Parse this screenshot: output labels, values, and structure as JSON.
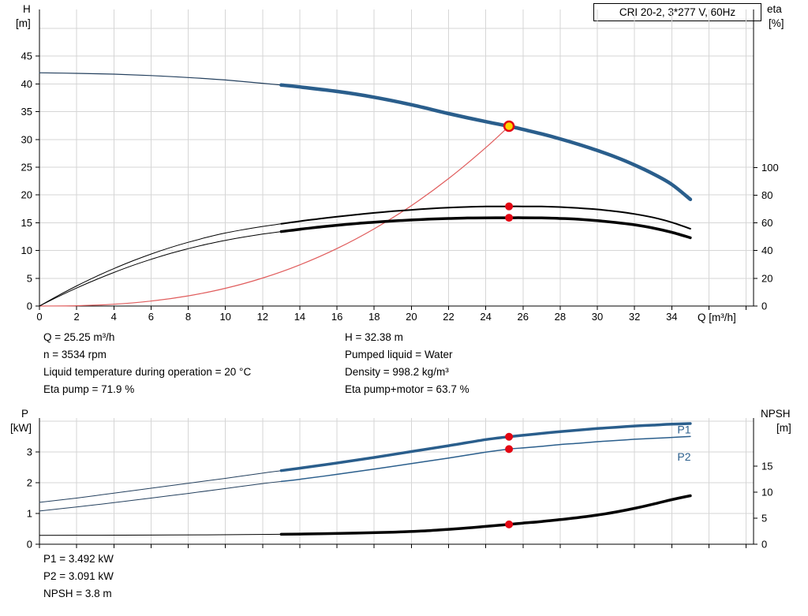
{
  "title_box": "CRI 20-2, 3*277 V, 60Hz",
  "axis_labels": {
    "h": "H",
    "h_unit": "[m]",
    "eta": "eta",
    "eta_unit": "[%]",
    "q": "Q [m³/h]",
    "p": "P",
    "p_unit": "[kW]",
    "npsh": "NPSH",
    "npsh_unit": "[m]"
  },
  "info_top_left": [
    "Q = 25.25 m³/h",
    "n = 3534 rpm",
    "Liquid temperature during operation = 20 °C",
    "Eta pump = 71.9 %"
  ],
  "info_top_right": [
    "H = 32.38 m",
    "Pumped liquid = Water",
    "Density = 998.2 kg/m³",
    "Eta pump+motor = 63.7 %"
  ],
  "info_bottom": [
    "P1 = 3.492 kW",
    "P2 = 3.091 kW",
    "NPSH = 3.8 m"
  ],
  "colors": {
    "duty_curve_blue": "#2a5e8c",
    "low_flow_blue": "#24405e",
    "black_curve": "#000000",
    "system_curve_red": "#e05c5c",
    "marker_red": "#e30613",
    "operating_point_fill": "#ffd500",
    "grid": "#d6d6d6"
  },
  "chart_data": [
    {
      "type": "line",
      "title": "CRI 20-2, 3*277 V, 60Hz",
      "xlabel": "Q [m³/h]",
      "ylabel_left": "H [m]",
      "ylabel_right": "eta [%]",
      "plot": {
        "x0": 50,
        "y0": 12,
        "x1": 955,
        "y1": 388
      },
      "grid_color": "#d6d6d6",
      "x": {
        "min": 0,
        "max": 38.4,
        "show_labels": true,
        "labels": [
          0,
          2,
          4,
          6,
          8,
          10,
          12,
          14,
          16,
          18,
          20,
          22,
          24,
          26,
          28,
          30,
          32,
          34
        ],
        "grid": [
          2,
          4,
          6,
          8,
          10,
          12,
          14,
          16,
          18,
          20,
          22,
          24,
          26,
          28,
          30,
          32,
          34,
          36,
          38
        ]
      },
      "left": {
        "min": 0,
        "max": 53.4,
        "ticks": [
          0,
          5,
          10,
          15,
          20,
          25,
          30,
          35,
          40,
          45
        ],
        "grid": [
          5,
          10,
          15,
          20,
          25,
          30,
          35,
          40,
          45,
          50
        ]
      },
      "right": {
        "min": 0,
        "max": 214,
        "ticks": [
          0,
          20,
          40,
          60,
          80,
          100
        ]
      },
      "series": [
        {
          "name": "head-curve-low-flow",
          "axis": "left",
          "color": "#24405e",
          "width": 1.2,
          "points": [
            [
              0,
              42
            ],
            [
              2,
              41.9
            ],
            [
              4,
              41.75
            ],
            [
              6,
              41.5
            ],
            [
              8,
              41.15
            ],
            [
              10,
              40.7
            ],
            [
              12,
              40.1
            ],
            [
              13,
              39.8
            ]
          ]
        },
        {
          "name": "head-curve",
          "axis": "left",
          "color": "#2a5e8c",
          "width": 4.5,
          "points": [
            [
              13,
              39.8
            ],
            [
              14,
              39.45
            ],
            [
              16,
              38.65
            ],
            [
              18,
              37.6
            ],
            [
              20,
              36.25
            ],
            [
              22,
              34.65
            ],
            [
              24,
              33.2
            ],
            [
              25.25,
              32.38
            ],
            [
              26,
              31.8
            ],
            [
              27,
              31
            ],
            [
              28,
              30.1
            ],
            [
              29,
              29.1
            ],
            [
              30,
              28
            ],
            [
              31,
              26.8
            ],
            [
              32,
              25.4
            ],
            [
              33,
              23.8
            ],
            [
              34,
              21.9
            ],
            [
              35,
              19.2
            ]
          ]
        },
        {
          "name": "system-curve",
          "axis": "left",
          "color": "#e05c5c",
          "width": 1.2,
          "points": [
            [
              0,
              0
            ],
            [
              2,
              0.06
            ],
            [
              4,
              0.32
            ],
            [
              6,
              0.89
            ],
            [
              8,
              1.83
            ],
            [
              10,
              3.19
            ],
            [
              12,
              5.04
            ],
            [
              14,
              7.41
            ],
            [
              16,
              10.35
            ],
            [
              18,
              13.9
            ],
            [
              20,
              18.08
            ],
            [
              22,
              22.95
            ],
            [
              24,
              28.52
            ],
            [
              25.25,
              32.38
            ]
          ]
        },
        {
          "name": "eta-pump-low-flow",
          "axis": "right",
          "color": "#000000",
          "width": 1,
          "points": [
            [
              0,
              0
            ],
            [
              1,
              7.5
            ],
            [
              2,
              14.5
            ],
            [
              3,
              21
            ],
            [
              4,
              27
            ],
            [
              5,
              32.5
            ],
            [
              6,
              37.5
            ],
            [
              7,
              42
            ],
            [
              8,
              46
            ],
            [
              9,
              49.6
            ],
            [
              10,
              52.7
            ],
            [
              11,
              55.2
            ],
            [
              12,
              57.4
            ],
            [
              13,
              59.3
            ]
          ]
        },
        {
          "name": "eta-pump",
          "axis": "right",
          "color": "#000000",
          "width": 2,
          "points": [
            [
              13,
              59.3
            ],
            [
              14,
              61.2
            ],
            [
              15,
              62.9
            ],
            [
              16,
              64.5
            ],
            [
              17,
              65.9
            ],
            [
              18,
              67.2
            ],
            [
              19,
              68.4
            ],
            [
              20,
              69.4
            ],
            [
              21,
              70.3
            ],
            [
              22,
              71
            ],
            [
              23,
              71.5
            ],
            [
              24,
              71.8
            ],
            [
              25.25,
              71.9
            ],
            [
              26,
              71.9
            ],
            [
              27,
              71.8
            ],
            [
              28,
              71.4
            ],
            [
              29,
              70.7
            ],
            [
              30,
              69.7
            ],
            [
              31,
              68.3
            ],
            [
              32,
              66.4
            ],
            [
              33,
              63.9
            ],
            [
              34,
              60.4
            ],
            [
              35,
              55.8
            ]
          ]
        },
        {
          "name": "eta-pump-motor-low-flow",
          "axis": "right",
          "color": "#000000",
          "width": 1,
          "points": [
            [
              0,
              0
            ],
            [
              1,
              6.7
            ],
            [
              2,
              13
            ],
            [
              3,
              18.8
            ],
            [
              4,
              24.2
            ],
            [
              5,
              29.2
            ],
            [
              6,
              33.7
            ],
            [
              7,
              37.8
            ],
            [
              8,
              41.4
            ],
            [
              9,
              44.6
            ],
            [
              10,
              47.4
            ],
            [
              11,
              49.8
            ],
            [
              12,
              51.9
            ],
            [
              13,
              53.7
            ]
          ]
        },
        {
          "name": "eta-pump-motor",
          "axis": "right",
          "color": "#000000",
          "width": 3.5,
          "points": [
            [
              13,
              53.7
            ],
            [
              14,
              55.4
            ],
            [
              15,
              56.9
            ],
            [
              16,
              58.3
            ],
            [
              17,
              59.5
            ],
            [
              18,
              60.5
            ],
            [
              19,
              61.4
            ],
            [
              20,
              62.1
            ],
            [
              21,
              62.7
            ],
            [
              22,
              63.2
            ],
            [
              23,
              63.5
            ],
            [
              24,
              63.65
            ],
            [
              25.25,
              63.7
            ],
            [
              26,
              63.7
            ],
            [
              27,
              63.6
            ],
            [
              28,
              63.2
            ],
            [
              29,
              62.6
            ],
            [
              30,
              61.6
            ],
            [
              31,
              60.3
            ],
            [
              32,
              58.6
            ],
            [
              33,
              56.3
            ],
            [
              34,
              53.2
            ],
            [
              35,
              49.3
            ]
          ]
        }
      ],
      "markers": [
        {
          "name": "eta-pump-point",
          "q": 25.25,
          "v": 71.9,
          "axis": "right",
          "r": 5,
          "fill": "#e30613"
        },
        {
          "name": "eta-pump-motor-point",
          "q": 25.25,
          "v": 63.7,
          "axis": "right",
          "r": 5,
          "fill": "#e30613"
        },
        {
          "name": "operating-point",
          "q": 25.25,
          "v": 32.38,
          "axis": "left",
          "r": 6,
          "fill": "#ffd500",
          "stroke": "#e30613",
          "stroke_width": 2.5
        }
      ],
      "annotations": []
    },
    {
      "type": "line",
      "title": "",
      "xlabel": "",
      "ylabel_left": "P [kW]",
      "ylabel_right": "NPSH [m]",
      "plot": {
        "x0": 50,
        "y0": 15,
        "x1": 955,
        "y1": 175
      },
      "grid_color": "#d6d6d6",
      "x": {
        "min": 0,
        "max": 38.4,
        "show_labels": false,
        "labels": [],
        "grid": [
          2,
          4,
          6,
          8,
          10,
          12,
          14,
          16,
          18,
          20,
          22,
          24,
          26,
          28,
          30,
          32,
          34,
          36,
          38
        ]
      },
      "left": {
        "min": 0,
        "max": 4.1,
        "ticks": [
          0,
          1,
          2,
          3
        ],
        "grid": [
          1,
          2,
          3,
          4
        ]
      },
      "right": {
        "min": 0,
        "max": 24.2,
        "ticks": [
          0,
          5,
          10,
          15
        ]
      },
      "series": [
        {
          "name": "p1-low-flow",
          "axis": "left",
          "color": "#24405e",
          "width": 1,
          "points": [
            [
              0,
              1.36
            ],
            [
              2,
              1.5
            ],
            [
              4,
              1.66
            ],
            [
              6,
              1.82
            ],
            [
              8,
              1.98
            ],
            [
              10,
              2.14
            ],
            [
              12,
              2.31
            ],
            [
              13,
              2.39
            ]
          ]
        },
        {
          "name": "p1",
          "axis": "left",
          "color": "#2a5e8c",
          "width": 3.5,
          "points": [
            [
              13,
              2.39
            ],
            [
              14,
              2.47
            ],
            [
              16,
              2.64
            ],
            [
              18,
              2.82
            ],
            [
              20,
              3.01
            ],
            [
              22,
              3.2
            ],
            [
              24,
              3.4
            ],
            [
              25.25,
              3.492
            ],
            [
              26,
              3.54
            ],
            [
              27,
              3.6
            ],
            [
              28,
              3.66
            ],
            [
              29,
              3.71
            ],
            [
              30,
              3.76
            ],
            [
              31,
              3.8
            ],
            [
              32,
              3.84
            ],
            [
              33,
              3.87
            ],
            [
              34,
              3.9
            ],
            [
              35,
              3.92
            ]
          ]
        },
        {
          "name": "p2-low-flow",
          "axis": "left",
          "color": "#24405e",
          "width": 1,
          "points": [
            [
              0,
              1.08
            ],
            [
              2,
              1.21
            ],
            [
              4,
              1.35
            ],
            [
              6,
              1.5
            ],
            [
              8,
              1.65
            ],
            [
              10,
              1.81
            ],
            [
              12,
              1.97
            ],
            [
              13,
              2.04
            ]
          ]
        },
        {
          "name": "p2",
          "axis": "left",
          "color": "#2a5e8c",
          "width": 1.5,
          "points": [
            [
              13,
              2.04
            ],
            [
              14,
              2.11
            ],
            [
              16,
              2.27
            ],
            [
              18,
              2.44
            ],
            [
              20,
              2.62
            ],
            [
              22,
              2.8
            ],
            [
              24,
              2.99
            ],
            [
              25.25,
              3.091
            ],
            [
              26,
              3.13
            ],
            [
              27,
              3.18
            ],
            [
              28,
              3.24
            ],
            [
              29,
              3.28
            ],
            [
              30,
              3.33
            ],
            [
              31,
              3.37
            ],
            [
              32,
              3.41
            ],
            [
              33,
              3.44
            ],
            [
              34,
              3.47
            ],
            [
              35,
              3.5
            ]
          ]
        },
        {
          "name": "npsh-low-flow",
          "axis": "right",
          "color": "#000000",
          "width": 1,
          "points": [
            [
              0,
              1.7
            ],
            [
              3,
              1.72
            ],
            [
              6,
              1.75
            ],
            [
              9,
              1.8
            ],
            [
              11,
              1.84
            ],
            [
              13,
              1.9
            ]
          ]
        },
        {
          "name": "npsh",
          "axis": "right",
          "color": "#000000",
          "width": 3.5,
          "points": [
            [
              13,
              1.9
            ],
            [
              15,
              2.0
            ],
            [
              17,
              2.13
            ],
            [
              19,
              2.32
            ],
            [
              21,
              2.62
            ],
            [
              23,
              3.12
            ],
            [
              24,
              3.42
            ],
            [
              25.25,
              3.8
            ],
            [
              26,
              4.05
            ],
            [
              27,
              4.35
            ],
            [
              28,
              4.72
            ],
            [
              29,
              5.12
            ],
            [
              30,
              5.6
            ],
            [
              31,
              6.18
            ],
            [
              32,
              6.88
            ],
            [
              33,
              7.68
            ],
            [
              34,
              8.55
            ],
            [
              35,
              9.3
            ]
          ]
        }
      ],
      "markers": [
        {
          "name": "p1-point",
          "q": 25.25,
          "v": 3.492,
          "axis": "left",
          "r": 5,
          "fill": "#e30613"
        },
        {
          "name": "p2-point",
          "q": 25.25,
          "v": 3.091,
          "axis": "left",
          "r": 5,
          "fill": "#e30613"
        },
        {
          "name": "npsh-point",
          "q": 25.25,
          "v": 3.8,
          "axis": "right",
          "r": 5,
          "fill": "#e30613"
        }
      ],
      "annotations": [
        {
          "name": "p1-curve-label",
          "text": "P1",
          "q": 34.3,
          "v": 3.6,
          "axis": "left",
          "color": "#2a5e8c"
        },
        {
          "name": "p2-curve-label",
          "text": "P2",
          "q": 34.3,
          "v": 2.72,
          "axis": "left",
          "color": "#2a5e8c"
        }
      ]
    }
  ]
}
